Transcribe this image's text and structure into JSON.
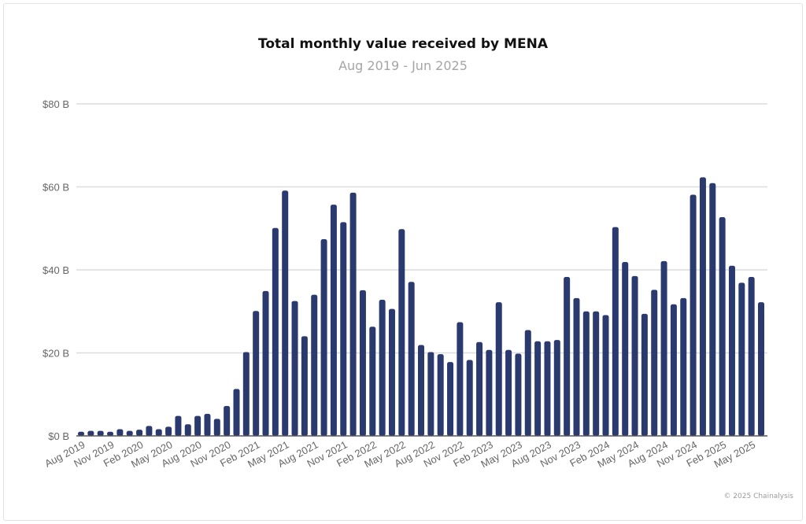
{
  "chart_data": {
    "type": "bar",
    "title": "Total monthly value received by MENA",
    "subtitle": "Aug 2019 - Jun 2025",
    "xlabel": "",
    "ylabel": "",
    "ylim": [
      0,
      80
    ],
    "yticks": [
      0,
      20,
      40,
      60,
      80
    ],
    "ytick_labels": [
      "$0 B",
      "$20 B",
      "$40 B",
      "$60 B",
      "$80 B"
    ],
    "grid": true,
    "bar_color": "#2b3a6e",
    "categories": [
      "Aug 2019",
      "Sep 2019",
      "Oct 2019",
      "Nov 2019",
      "Dec 2019",
      "Jan 2020",
      "Feb 2020",
      "Mar 2020",
      "Apr 2020",
      "May 2020",
      "Jun 2020",
      "Jul 2020",
      "Aug 2020",
      "Sep 2020",
      "Oct 2020",
      "Nov 2020",
      "Dec 2020",
      "Jan 2021",
      "Feb 2021",
      "Mar 2021",
      "Apr 2021",
      "May 2021",
      "Jun 2021",
      "Jul 2021",
      "Aug 2021",
      "Sep 2021",
      "Oct 2021",
      "Nov 2021",
      "Dec 2021",
      "Jan 2022",
      "Feb 2022",
      "Mar 2022",
      "Apr 2022",
      "May 2022",
      "Jun 2022",
      "Jul 2022",
      "Aug 2022",
      "Sep 2022",
      "Oct 2022",
      "Nov 2022",
      "Dec 2022",
      "Jan 2023",
      "Feb 2023",
      "Mar 2023",
      "Apr 2023",
      "May 2023",
      "Jun 2023",
      "Jul 2023",
      "Aug 2023",
      "Sep 2023",
      "Oct 2023",
      "Nov 2023",
      "Dec 2023",
      "Jan 2024",
      "Feb 2024",
      "Mar 2024",
      "Apr 2024",
      "May 2024",
      "Jun 2024",
      "Jul 2024",
      "Aug 2024",
      "Sep 2024",
      "Oct 2024",
      "Nov 2024",
      "Dec 2024",
      "Jan 2025",
      "Feb 2025",
      "Mar 2025",
      "Apr 2025",
      "May 2025",
      "Jun 2025"
    ],
    "xtick_labels": [
      "Aug 2019",
      "Nov 2019",
      "Feb 2020",
      "May 2020",
      "Aug 2020",
      "Nov 2020",
      "Feb 2021",
      "May 2021",
      "Aug 2021",
      "Nov 2021",
      "Feb 2022",
      "May 2022",
      "Aug 2022",
      "Nov 2022",
      "Feb 2023",
      "May 2023",
      "Aug 2023",
      "Nov 2023",
      "Feb 2024",
      "May 2024",
      "Aug 2024",
      "Nov 2024",
      "Feb 2025",
      "May 2025"
    ],
    "values": [
      1.0,
      1.2,
      1.2,
      1.0,
      1.6,
      1.2,
      1.5,
      2.4,
      1.6,
      2.2,
      4.8,
      2.8,
      4.8,
      5.3,
      4.1,
      7.2,
      11.3,
      20.2,
      30.1,
      34.9,
      50.1,
      59.1,
      32.5,
      24.0,
      34.0,
      47.4,
      55.7,
      51.5,
      58.6,
      35.1,
      26.3,
      32.8,
      30.6,
      49.8,
      37.1,
      21.9,
      20.2,
      19.7,
      17.8,
      27.4,
      18.3,
      22.6,
      20.7,
      32.2,
      20.7,
      19.8,
      25.5,
      22.8,
      22.8,
      23.1,
      38.3,
      33.2,
      30.0,
      30.0,
      29.1,
      50.3,
      41.9,
      38.5,
      29.4,
      35.2,
      42.1,
      31.7,
      33.2,
      58.1,
      62.3,
      60.9,
      52.7,
      41.0,
      36.9,
      38.3,
      32.2
    ]
  },
  "footer": {
    "credit": "© 2025 Chainalysis"
  }
}
